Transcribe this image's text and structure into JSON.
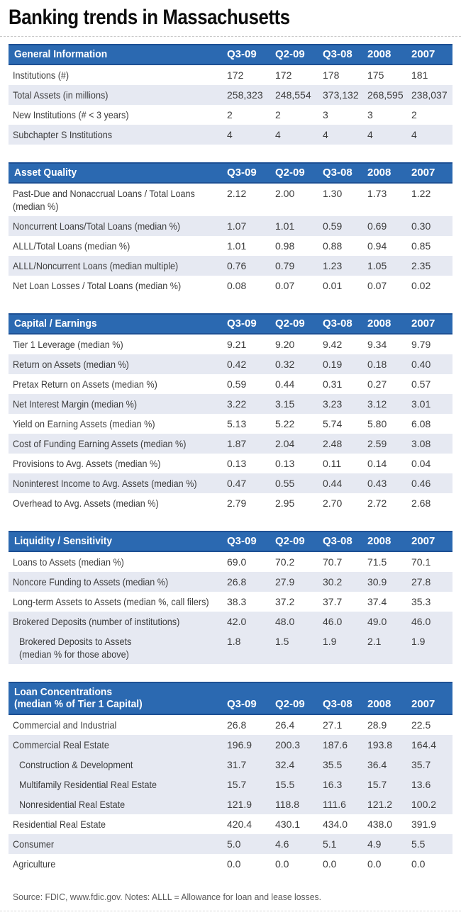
{
  "title": "Banking trends in Massachusetts",
  "columns": [
    "Q3-09",
    "Q2-09",
    "Q3-08",
    "2008",
    "2007"
  ],
  "sections": [
    {
      "name": "General Information",
      "rows": [
        {
          "label": "Institutions (#)",
          "values": [
            "172",
            "172",
            "178",
            "175",
            "181"
          ],
          "shaded": false,
          "indent": false
        },
        {
          "label": "Total Assets (in millions)",
          "values": [
            "258,323",
            "248,554",
            "373,132",
            "268,595",
            "238,037"
          ],
          "shaded": true,
          "indent": false
        },
        {
          "label": "New Institutions (# < 3 years)",
          "values": [
            "2",
            "2",
            "3",
            "3",
            "2"
          ],
          "shaded": false,
          "indent": false
        },
        {
          "label": "Subchapter S Institutions",
          "values": [
            "4",
            "4",
            "4",
            "4",
            "4"
          ],
          "shaded": true,
          "indent": false
        }
      ]
    },
    {
      "name": "Asset Quality",
      "rows": [
        {
          "label": "Past-Due and Nonaccrual Loans / Total Loans",
          "label2": "(median %)",
          "values": [
            "2.12",
            "2.00",
            "1.30",
            "1.73",
            "1.22"
          ],
          "shaded": false,
          "indent": false
        },
        {
          "label": "Noncurrent Loans/Total Loans (median %)",
          "values": [
            "1.07",
            "1.01",
            "0.59",
            "0.69",
            "0.30"
          ],
          "shaded": true,
          "indent": false
        },
        {
          "label": "ALLL/Total Loans (median %)",
          "values": [
            "1.01",
            "0.98",
            "0.88",
            "0.94",
            "0.85"
          ],
          "shaded": false,
          "indent": false
        },
        {
          "label": "ALLL/Noncurrent Loans (median multiple)",
          "values": [
            "0.76",
            "0.79",
            "1.23",
            "1.05",
            "2.35"
          ],
          "shaded": true,
          "indent": false
        },
        {
          "label": "Net Loan Losses / Total Loans (median %)",
          "values": [
            "0.08",
            "0.07",
            "0.01",
            "0.07",
            "0.02"
          ],
          "shaded": false,
          "indent": false
        }
      ]
    },
    {
      "name": "Capital / Earnings",
      "rows": [
        {
          "label": "Tier 1 Leverage (median %)",
          "values": [
            "9.21",
            "9.20",
            "9.42",
            "9.34",
            "9.79"
          ],
          "shaded": false,
          "indent": false
        },
        {
          "label": "Return on Assets (median %)",
          "values": [
            "0.42",
            "0.32",
            "0.19",
            "0.18",
            "0.40"
          ],
          "shaded": true,
          "indent": false
        },
        {
          "label": "Pretax Return on Assets (median %)",
          "values": [
            "0.59",
            "0.44",
            "0.31",
            "0.27",
            "0.57"
          ],
          "shaded": false,
          "indent": false
        },
        {
          "label": "Net Interest Margin (median %)",
          "values": [
            "3.22",
            "3.15",
            "3.23",
            "3.12",
            "3.01"
          ],
          "shaded": true,
          "indent": false
        },
        {
          "label": "Yield on Earning Assets (median %)",
          "values": [
            "5.13",
            "5.22",
            "5.74",
            "5.80",
            "6.08"
          ],
          "shaded": false,
          "indent": false
        },
        {
          "label": "Cost of Funding Earning Assets (median %)",
          "values": [
            "1.87",
            "2.04",
            "2.48",
            "2.59",
            "3.08"
          ],
          "shaded": true,
          "indent": false
        },
        {
          "label": "Provisions to Avg. Assets (median %)",
          "values": [
            "0.13",
            "0.13",
            "0.11",
            "0.14",
            "0.04"
          ],
          "shaded": false,
          "indent": false
        },
        {
          "label": "Noninterest Income to Avg. Assets (median %)",
          "values": [
            "0.47",
            "0.55",
            "0.44",
            "0.43",
            "0.46"
          ],
          "shaded": true,
          "indent": false
        },
        {
          "label": "Overhead to Avg. Assets (median %)",
          "values": [
            "2.79",
            "2.95",
            "2.70",
            "2.72",
            "2.68"
          ],
          "shaded": false,
          "indent": false
        }
      ]
    },
    {
      "name": "Liquidity / Sensitivity",
      "rows": [
        {
          "label": "Loans to Assets (median %)",
          "values": [
            "69.0",
            "70.2",
            "70.7",
            "71.5",
            "70.1"
          ],
          "shaded": false,
          "indent": false
        },
        {
          "label": "Noncore Funding to Assets (median %)",
          "values": [
            "26.8",
            "27.9",
            "30.2",
            "30.9",
            "27.8"
          ],
          "shaded": true,
          "indent": false
        },
        {
          "label": "Long-term Assets to Assets (median %, call filers)",
          "values": [
            "38.3",
            "37.2",
            "37.7",
            "37.4",
            "35.3"
          ],
          "shaded": false,
          "indent": false
        },
        {
          "label": "Brokered Deposits (number of institutions)",
          "values": [
            "42.0",
            "48.0",
            "46.0",
            "49.0",
            "46.0"
          ],
          "shaded": true,
          "indent": false
        },
        {
          "label": "Brokered Deposits to Assets",
          "label2": "(median % for those above)",
          "values": [
            "1.8",
            "1.5",
            "1.9",
            "2.1",
            "1.9"
          ],
          "shaded": true,
          "indent": true
        }
      ]
    },
    {
      "name": "Loan Concentrations",
      "name2": "(median % of Tier 1 Capital)",
      "rows": [
        {
          "label": "Commercial and Industrial",
          "values": [
            "26.8",
            "26.4",
            "27.1",
            "28.9",
            "22.5"
          ],
          "shaded": false,
          "indent": false
        },
        {
          "label": "Commercial Real Estate",
          "values": [
            "196.9",
            "200.3",
            "187.6",
            "193.8",
            "164.4"
          ],
          "shaded": true,
          "indent": false
        },
        {
          "label": "Construction & Development",
          "values": [
            "31.7",
            "32.4",
            "35.5",
            "36.4",
            "35.7"
          ],
          "shaded": true,
          "indent": true
        },
        {
          "label": "Multifamily Residential Real Estate",
          "values": [
            "15.7",
            "15.5",
            "16.3",
            "15.7",
            "13.6"
          ],
          "shaded": true,
          "indent": true
        },
        {
          "label": "Nonresidential Real Estate",
          "values": [
            "121.9",
            "118.8",
            "111.6",
            "121.2",
            "100.2"
          ],
          "shaded": true,
          "indent": true
        },
        {
          "label": "Residential Real Estate",
          "values": [
            "420.4",
            "430.1",
            "434.0",
            "438.0",
            "391.9"
          ],
          "shaded": false,
          "indent": false
        },
        {
          "label": "Consumer",
          "values": [
            "5.0",
            "4.6",
            "5.1",
            "4.9",
            "5.5"
          ],
          "shaded": true,
          "indent": false
        },
        {
          "label": "Agriculture",
          "values": [
            "0.0",
            "0.0",
            "0.0",
            "0.0",
            "0.0"
          ],
          "shaded": false,
          "indent": false
        }
      ]
    }
  ],
  "source_note": "Source: FDIC, www.fdic.gov. Notes: ALLL = Allowance for loan and lease losses.",
  "colors": {
    "header_bg": "#2b69b1",
    "header_edge": "#1d5094",
    "row_alt": "#e6e9f2",
    "text": "#3d3d3d",
    "title": "#0d0d0d",
    "source": "#5a5a5a"
  }
}
